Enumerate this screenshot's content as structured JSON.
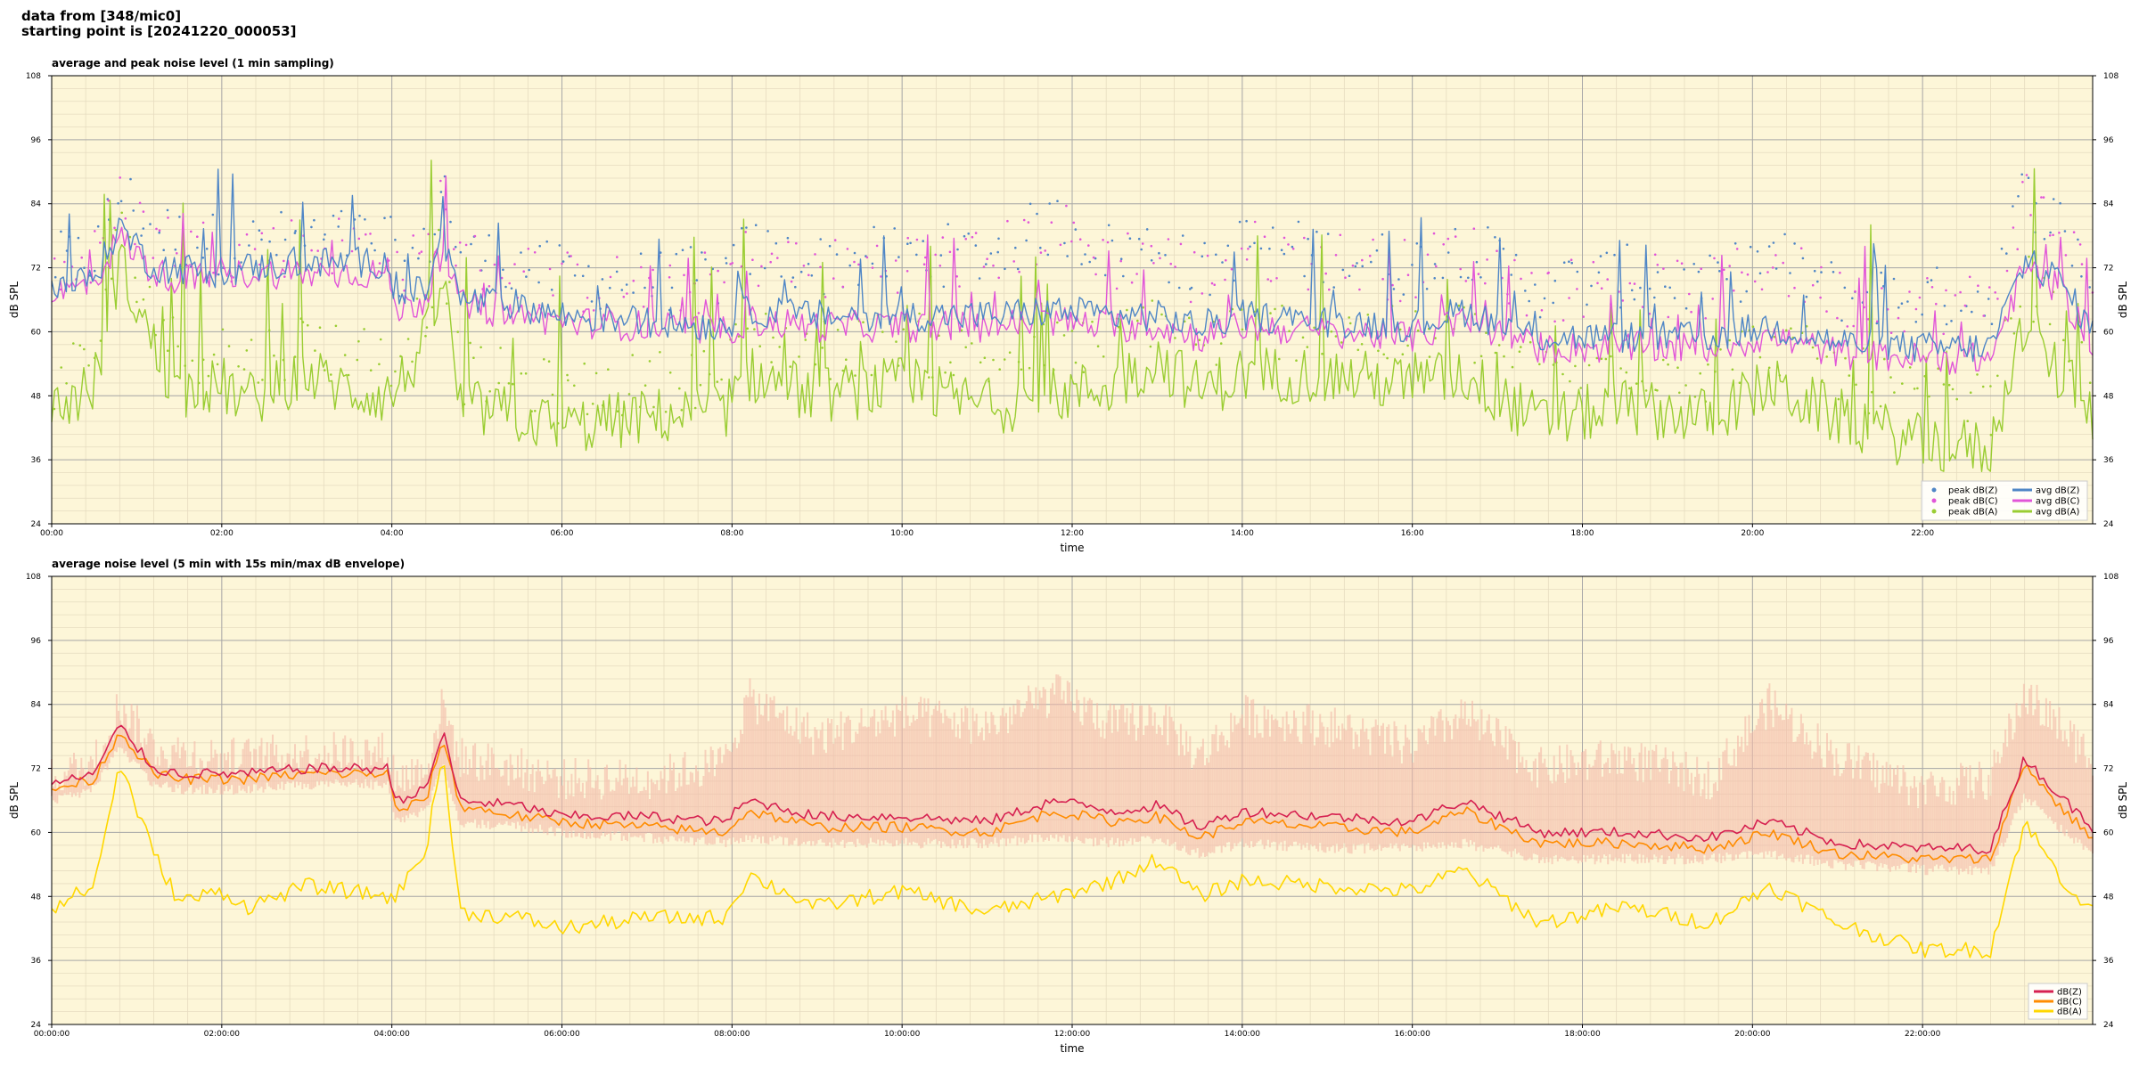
{
  "header": {
    "line1": "data from [348/mic0]",
    "line2": "starting point is [20241220_000053]"
  },
  "colors": {
    "plot_bg": "#fdf6d8",
    "grid_major": "#a8a8a8",
    "grid_minor": "#e6dcc0",
    "top_Z": "#4f86c6",
    "top_C": "#e155d8",
    "top_A": "#9acd32",
    "bot_Z": "#d62050",
    "bot_C": "#ff8c00",
    "bot_A": "#ffd700",
    "envelope": "#f4b9a8"
  },
  "chart_data": [
    {
      "type": "line",
      "title": "average and peak noise level (1 min sampling)",
      "xlabel": "time",
      "ylabel": "dB SPL",
      "ylim": [
        24,
        108
      ],
      "yticks": [
        24,
        36,
        48,
        60,
        72,
        84,
        96,
        108
      ],
      "xlim_hours": [
        0,
        24
      ],
      "x_ticks": [
        "00:00",
        "02:00",
        "04:00",
        "06:00",
        "08:00",
        "10:00",
        "12:00",
        "14:00",
        "16:00",
        "18:00",
        "20:00",
        "22:00"
      ],
      "grid": true,
      "legend_position": "bottom-right",
      "legend_left": [
        "peak dB(Z)",
        "peak dB(C)",
        "peak dB(A)"
      ],
      "legend_right": [
        "avg dB(Z)",
        "avg dB(C)",
        "avg dB(A)"
      ],
      "x_hours": [
        0,
        0.5,
        0.8,
        1.2,
        1.5,
        2.0,
        2.3,
        3.0,
        3.5,
        3.95,
        4.05,
        4.4,
        4.6,
        4.8,
        5.5,
        6.0,
        7.0,
        7.9,
        8.2,
        9.0,
        10.0,
        11.0,
        11.8,
        12.5,
        13.0,
        13.5,
        14.0,
        15.0,
        16.0,
        16.6,
        17.5,
        18.5,
        19.5,
        20.2,
        21.0,
        22.0,
        22.8,
        23.2,
        23.6,
        24.0
      ],
      "series": [
        {
          "name": "avg dB(Z)",
          "values": [
            68,
            70,
            80,
            72,
            72,
            71,
            72,
            73,
            73,
            73,
            66,
            68,
            77,
            66,
            65,
            63,
            62,
            61,
            64,
            63,
            63,
            63,
            64,
            63,
            63,
            61,
            63,
            62,
            61,
            64,
            59,
            59,
            59,
            61,
            58,
            57,
            57,
            73,
            70,
            60
          ]
        },
        {
          "name": "avg dB(C)",
          "values": [
            67,
            69,
            78,
            71,
            70,
            70,
            71,
            71,
            71,
            71,
            64,
            66,
            76,
            65,
            63,
            62,
            61,
            60,
            62,
            61,
            61,
            61,
            62,
            61,
            61,
            59,
            61,
            60,
            59,
            62,
            57,
            57,
            57,
            59,
            56,
            55,
            55,
            72,
            68,
            58
          ]
        },
        {
          "name": "avg dB(A)",
          "values": [
            45,
            50,
            73,
            57,
            48,
            50,
            47,
            52,
            49,
            48,
            49,
            58,
            70,
            46,
            44,
            42,
            44,
            45,
            52,
            48,
            50,
            46,
            48,
            50,
            55,
            49,
            52,
            52,
            50,
            52,
            43,
            46,
            44,
            50,
            44,
            39,
            38,
            62,
            52,
            45
          ]
        },
        {
          "name": "peak dB(Z)",
          "values": [
            70,
            72,
            84,
            77,
            75,
            74,
            74,
            75,
            75,
            75,
            70,
            72,
            86,
            72,
            70,
            68,
            67,
            68,
            73,
            70,
            72,
            72,
            78,
            72,
            74,
            68,
            74,
            72,
            70,
            74,
            66,
            68,
            66,
            72,
            65,
            64,
            64,
            84,
            78,
            68
          ]
        },
        {
          "name": "peak dB(C)",
          "values": [
            69,
            71,
            82,
            76,
            74,
            73,
            73,
            74,
            74,
            74,
            69,
            71,
            84,
            71,
            69,
            67,
            66,
            67,
            72,
            69,
            71,
            71,
            77,
            71,
            73,
            67,
            73,
            71,
            69,
            73,
            65,
            67,
            65,
            71,
            64,
            63,
            63,
            83,
            77,
            67
          ]
        },
        {
          "name": "peak dB(A)",
          "values": [
            48,
            53,
            76,
            62,
            53,
            55,
            52,
            56,
            54,
            53,
            53,
            62,
            74,
            50,
            48,
            46,
            48,
            50,
            58,
            54,
            56,
            52,
            54,
            56,
            61,
            55,
            58,
            58,
            56,
            58,
            49,
            52,
            50,
            56,
            50,
            45,
            44,
            68,
            58,
            51
          ]
        }
      ]
    },
    {
      "type": "line",
      "title": "average noise level (5 min with 15s min/max dB envelope)",
      "xlabel": "time",
      "ylabel": "dB SPL",
      "ylim": [
        24,
        108
      ],
      "yticks": [
        24,
        36,
        48,
        60,
        72,
        84,
        96,
        108
      ],
      "xlim_hours": [
        0,
        24
      ],
      "x_ticks": [
        "00:00:00",
        "02:00:00",
        "04:00:00",
        "06:00:00",
        "08:00:00",
        "10:00:00",
        "12:00:00",
        "14:00:00",
        "16:00:00",
        "18:00:00",
        "20:00:00",
        "22:00:00"
      ],
      "grid": true,
      "legend_position": "bottom-right",
      "x_hours": [
        0,
        0.5,
        0.8,
        1.2,
        1.5,
        2.0,
        2.3,
        3.0,
        3.5,
        3.95,
        4.05,
        4.4,
        4.6,
        4.8,
        5.5,
        6.0,
        7.0,
        7.9,
        8.2,
        9.0,
        10.0,
        11.0,
        11.8,
        12.5,
        13.0,
        13.5,
        14.0,
        15.0,
        16.0,
        16.6,
        17.5,
        18.5,
        19.5,
        20.2,
        21.0,
        22.0,
        22.8,
        23.2,
        23.6,
        24.0
      ],
      "series": [
        {
          "name": "dB(Z)",
          "values": [
            69,
            71,
            80,
            72,
            71,
            71,
            71,
            72,
            72,
            72,
            66,
            68,
            79,
            66,
            65,
            63,
            63,
            62,
            66,
            63,
            63,
            62,
            66,
            64,
            65,
            61,
            64,
            63,
            62,
            66,
            60,
            60,
            59,
            62,
            58,
            57,
            57,
            74,
            67,
            61
          ]
        },
        {
          "name": "dB(C)",
          "values": [
            68,
            70,
            79,
            71,
            70,
            70,
            70,
            71,
            71,
            71,
            64,
            66,
            78,
            65,
            63,
            62,
            61,
            60,
            64,
            61,
            61,
            60,
            64,
            62,
            63,
            59,
            62,
            61,
            60,
            64,
            58,
            58,
            57,
            60,
            56,
            55,
            55,
            73,
            65,
            59
          ]
        },
        {
          "name": "dB(A)",
          "values": [
            46,
            50,
            73,
            56,
            47,
            49,
            46,
            50,
            49,
            48,
            48,
            57,
            75,
            45,
            44,
            42,
            44,
            44,
            52,
            46,
            49,
            45,
            48,
            51,
            55,
            48,
            51,
            50,
            49,
            53,
            43,
            46,
            43,
            50,
            43,
            38,
            38,
            62,
            52,
            45
          ]
        },
        {
          "name": "envelope max",
          "values": [
            70,
            73,
            84,
            76,
            75,
            74,
            74,
            75,
            75,
            75,
            70,
            72,
            84,
            74,
            72,
            70,
            70,
            73,
            85,
            78,
            82,
            80,
            86,
            80,
            82,
            74,
            82,
            80,
            76,
            82,
            72,
            74,
            70,
            84,
            74,
            68,
            70,
            86,
            80,
            74
          ]
        },
        {
          "name": "envelope min",
          "values": [
            67,
            69,
            77,
            70,
            69,
            69,
            69,
            70,
            70,
            70,
            63,
            65,
            74,
            63,
            62,
            61,
            60,
            59,
            60,
            59,
            59,
            59,
            60,
            59,
            60,
            57,
            59,
            58,
            58,
            59,
            56,
            56,
            56,
            57,
            55,
            54,
            54,
            68,
            62,
            57
          ]
        }
      ]
    }
  ]
}
